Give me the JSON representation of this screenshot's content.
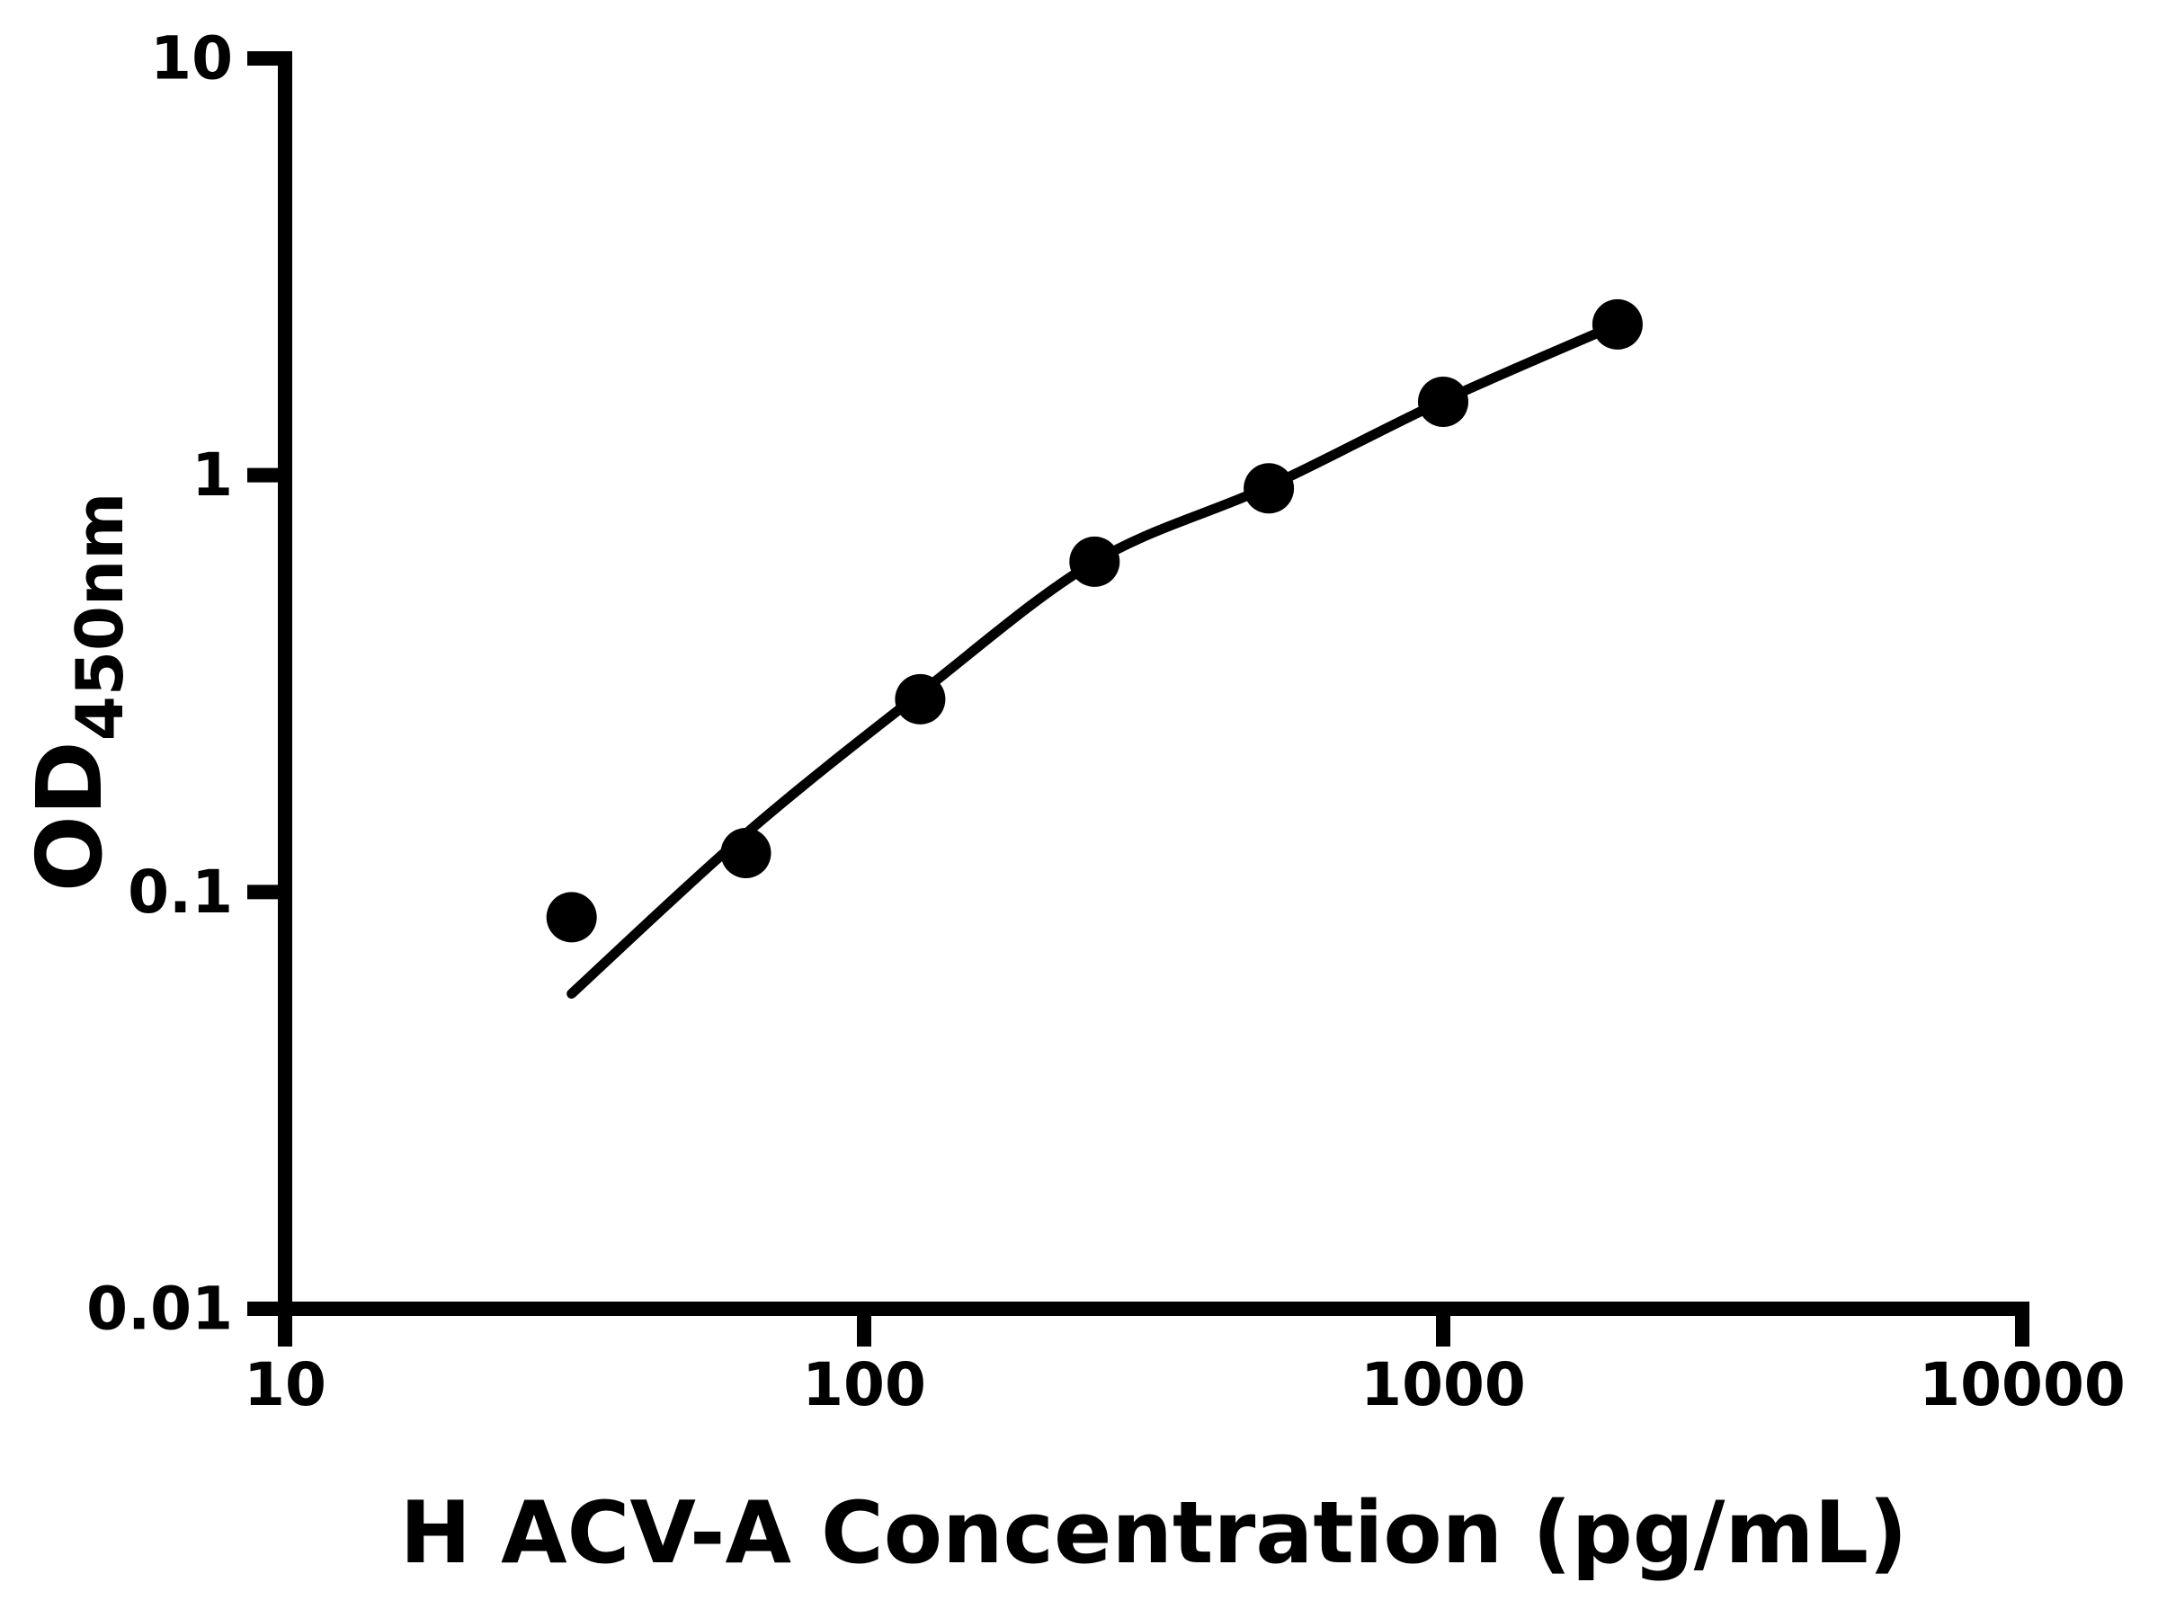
{
  "chart_data": {
    "type": "scatter",
    "subtype": "elisa-standard-curve",
    "title": "",
    "xlabel": "H ACV-A Concentration (pg/mL)",
    "ylabel_main": "OD",
    "ylabel_sub": "450nm",
    "x_scale": "log",
    "y_scale": "log",
    "xlim": [
      10,
      10000
    ],
    "ylim": [
      0.01,
      10
    ],
    "grid": false,
    "legend": false,
    "x_ticks": [
      {
        "value": 10,
        "label": "10"
      },
      {
        "value": 100,
        "label": "100"
      },
      {
        "value": 1000,
        "label": "1000"
      },
      {
        "value": 10000,
        "label": "10000"
      }
    ],
    "y_ticks": [
      {
        "value": 10,
        "label": "10"
      },
      {
        "value": 1,
        "label": "1"
      },
      {
        "value": 0.1,
        "label": "0.1"
      },
      {
        "value": 0.01,
        "label": "0.01"
      }
    ],
    "series": [
      {
        "name": "standard-points",
        "type": "scatter",
        "x": [
          31.25,
          62.5,
          125,
          250,
          500,
          1000,
          2000
        ],
        "y": [
          0.087,
          0.124,
          0.29,
          0.62,
          0.93,
          1.5,
          2.3
        ]
      },
      {
        "name": "fit-curve",
        "type": "line",
        "x": [
          31.25,
          62.5,
          125,
          250,
          500,
          1000,
          2000
        ],
        "y": [
          0.057,
          0.138,
          0.3,
          0.62,
          0.94,
          1.51,
          2.3
        ]
      }
    ],
    "colors": {
      "marker": "#000000",
      "line": "#000000",
      "axis": "#000000",
      "text": "#000000",
      "background": "#ffffff"
    }
  }
}
